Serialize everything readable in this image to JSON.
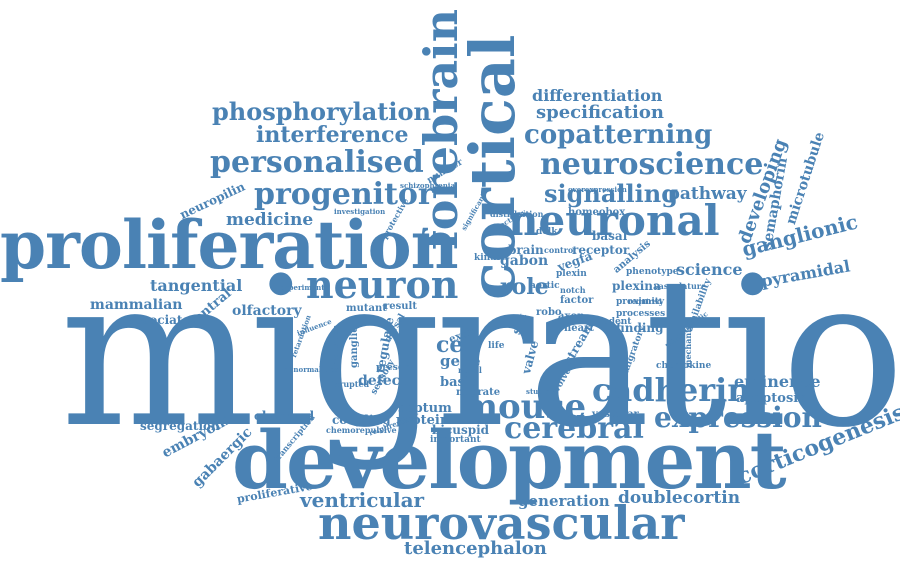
{
  "colors": {
    "word": "#4a82b4",
    "background": "#ffffff"
  },
  "words": {
    "migration": "migration",
    "development": "development",
    "proliferation": "proliferation",
    "neurovascular": "neurovascular",
    "cortical": "cortical",
    "forebrain": "forebrain",
    "neuronal": "neuronal",
    "neuron": "neuron",
    "mouse": "mouse",
    "cadherin": "cadherin",
    "cerebral": "cerebral",
    "expression": "expression",
    "corticogenesis": "corticogenesis",
    "neuroscience": "neuroscience",
    "copatterning": "copatterning",
    "personalised": "personalised",
    "progenitor": "progenitor",
    "phosphorylation": "phosphorylation",
    "interference": "interference",
    "signalling": "signalling",
    "pathway": "pathway",
    "differentiation": "differentiation",
    "specification": "specification",
    "developing": "developing",
    "semaphorin": "semaphorin",
    "microtubule": "microtubule",
    "ganglionic": "ganglionic",
    "science": "science",
    "pyramidal": "pyramidal",
    "eminence": "eminence",
    "apoptosis": "apoptosis",
    "ventricular": "ventricular",
    "generation": "generation",
    "doublecortin": "doublecortin",
    "telencephalon": "telencephalon",
    "medicine": "medicine",
    "neuropilin": "neuropilin",
    "tangential": "tangential",
    "mammalian": "mammalian",
    "associated": "associated",
    "ventral": "ventral",
    "olfactory": "olfactory",
    "role": "role",
    "cell": "cell",
    "gene": "gene",
    "defect": "defect",
    "basic": "basic",
    "septum": "septum",
    "protein": "protein",
    "bicuspid": "bicuspid",
    "coupling": "coupling",
    "observed": "observed",
    "segregation": "segregation",
    "embryonic": "embryonic",
    "gabaergic": "gabaergic",
    "proliferative": "proliferative",
    "gabon": "gabon",
    "vegfa": "vegfa",
    "receptor": "receptor",
    "plexina": "plexina",
    "phenotype": "phenotype",
    "finding": "finding",
    "vascular": "vascular",
    "migrate": "migrate",
    "important": "important",
    "mutant": "mutant",
    "result": "result",
    "brain": "brain",
    "basal": "basal",
    "homeobox": "homeobox",
    "robo": "robo",
    "axon": "axon",
    "heart": "heart",
    "factor": "factor",
    "kinase": "kinase",
    "chemokine": "chemokine",
    "analysis": "analysis",
    "number": "number",
    "ganglion": "ganglion",
    "regulate": "regulate",
    "stream": "stream",
    "valve": "valve",
    "involved": "involved",
    "excit": "excit",
    "slit": "slit",
    "aortic": "aortic",
    "plexin": "plexin",
    "dclk": "dclk",
    "life": "life",
    "present": "present",
    "processes": "processes",
    "proximity": "proximity",
    "vasculature": "vasculature",
    "availability": "availability",
    "mechanism": "mechanism",
    "migratory": "migratory",
    "rodent": "rodent",
    "notch": "notch",
    "control": "control",
    "distribution": "distribution",
    "disrupted": "disrupted",
    "schizophrenia": "schizophrenia",
    "investigation": "investigation",
    "dorsal": "dorsal",
    "sensory": "sensory",
    "transcription": "transcription",
    "chemorepulsive": "chemorepulsive",
    "requirement": "requirement",
    "novel": "novel",
    "abnormalities": "abnormalities",
    "protective": "protective",
    "overexpression": "overexpression",
    "studies": "studies",
    "required": "required",
    "experiment": "experiment",
    "influence": "influence",
    "retardation": "retardation",
    "regulation": "regulation",
    "connectivity": "connectivity",
    "significant": "significant",
    "telencephalic": "telencephalic"
  }
}
